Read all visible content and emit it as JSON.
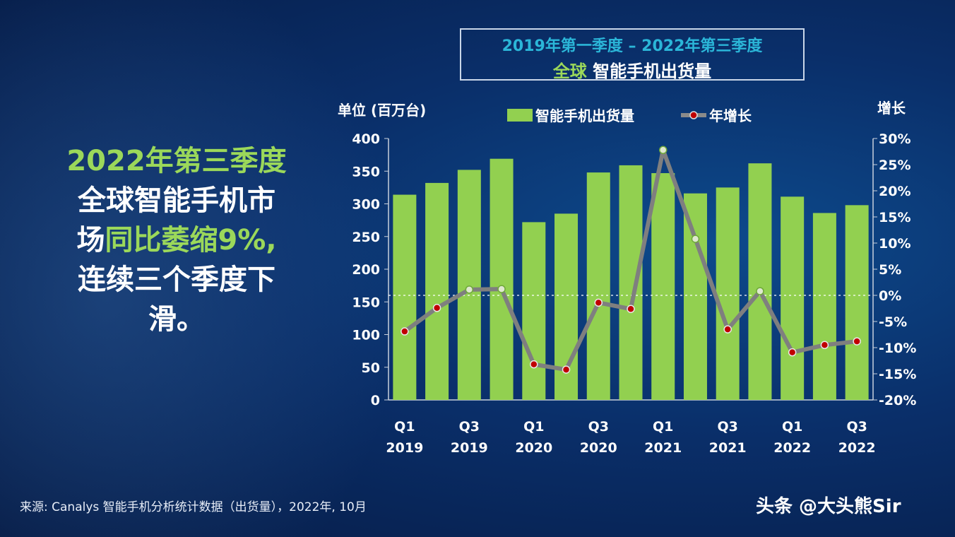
{
  "headline": {
    "line1": "2022年第三季度",
    "line2": "全球智能手机市",
    "line3a": "场",
    "line3b": "同比萎缩9%,",
    "line4": "连续三个季度下",
    "line5": "滑。"
  },
  "source": "来源: Canalys 智能手机分析统计数据（出货量），2022年, 10月",
  "watermark": "头条 @大头熊Sir",
  "chart_data": {
    "type": "bar+line",
    "title_line1": "2019年第一季度 – 2022年第三季度",
    "title_line2_green": "全球",
    "title_line2_white": "智能手机出货量",
    "ylabel_left": "单位 (百万台)",
    "ylabel_right": "增长",
    "ylim_left": [
      0,
      400
    ],
    "ylim_right": [
      -20,
      30
    ],
    "yticks_left": [
      "0",
      "50",
      "100",
      "150",
      "200",
      "250",
      "300",
      "350",
      "400"
    ],
    "yticks_right": [
      "-20%",
      "-15%",
      "-10%",
      "-5%",
      "0%",
      "5%",
      "10%",
      "15%",
      "20%",
      "25%",
      "30%"
    ],
    "categories": [
      "Q1 2019",
      "Q2 2019",
      "Q3 2019",
      "Q4 2019",
      "Q1 2020",
      "Q2 2020",
      "Q3 2020",
      "Q4 2020",
      "Q1 2021",
      "Q2 2021",
      "Q3 2021",
      "Q4 2021",
      "Q1 2022",
      "Q2 2022",
      "Q3 2022"
    ],
    "xtick_labels": [
      {
        "q": "Q1",
        "y": "2019"
      },
      {
        "q": "Q3",
        "y": "2019"
      },
      {
        "q": "Q1",
        "y": "2020"
      },
      {
        "q": "Q3",
        "y": "2020"
      },
      {
        "q": "Q1",
        "y": "2021"
      },
      {
        "q": "Q3",
        "y": "2021"
      },
      {
        "q": "Q1",
        "y": "2022"
      },
      {
        "q": "Q3",
        "y": "2022"
      }
    ],
    "series": [
      {
        "name": "智能手机出货量",
        "axis": "left",
        "color": "#92d050",
        "values": [
          314,
          332,
          352,
          369,
          272,
          285,
          348,
          359,
          347,
          316,
          325,
          362,
          311,
          286,
          298
        ]
      },
      {
        "name": "年增长",
        "axis": "right",
        "color": "#7f7f7f",
        "marker_color": "#c00000",
        "values": [
          -6.9,
          -2.4,
          1.1,
          1.2,
          -13.2,
          -14.2,
          -1.4,
          -2.6,
          27.8,
          10.8,
          -6.5,
          0.8,
          -10.9,
          -9.5,
          -8.8
        ]
      }
    ],
    "legend": "top"
  }
}
